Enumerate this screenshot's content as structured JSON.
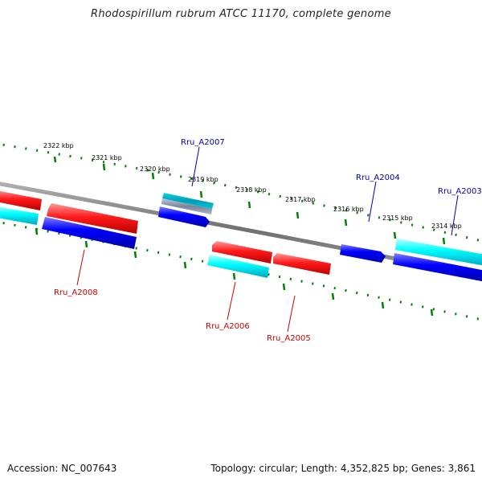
{
  "title": "Rhodospirillum rubrum ATCC 11170, complete genome",
  "footer": {
    "accession": "Accession: NC_007643",
    "summary": "Topology: circular; Length: 4,352,825 bp; Genes: 3,861"
  },
  "colors": {
    "forward_cds": "#ff0000",
    "reverse_cds": "#0000ff",
    "forward_gene": "#00ffff",
    "reverse_gene": "#00ffff",
    "misc_feature": "#8899aa",
    "backbone": "#808080",
    "tick": "#008000",
    "forward_label": "#cc0000",
    "reverse_label": "#0000aa"
  },
  "ticks": [
    {
      "label": "2322 kbp"
    },
    {
      "label": "2321 kbp"
    },
    {
      "label": "2320 kbp"
    },
    {
      "label": "2319 kbp"
    },
    {
      "label": "2318 kbp"
    },
    {
      "label": "2317 kbp"
    },
    {
      "label": "2316 kbp"
    },
    {
      "label": "2315 kbp"
    },
    {
      "label": "2314 kbp"
    }
  ],
  "genes": [
    {
      "name": "Rru_A2008",
      "strand": "forward"
    },
    {
      "name": "Rru_A2007",
      "strand": "reverse"
    },
    {
      "name": "Rru_A2006",
      "strand": "forward"
    },
    {
      "name": "Rru_A2005",
      "strand": "forward"
    },
    {
      "name": "Rru_A2004",
      "strand": "reverse"
    },
    {
      "name": "Rru_A2003",
      "strand": "reverse"
    }
  ]
}
